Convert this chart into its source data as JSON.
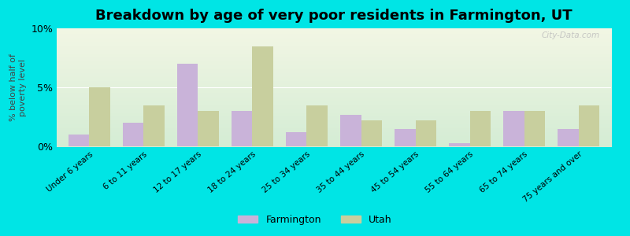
{
  "categories": [
    "Under 6 years",
    "6 to 11 years",
    "12 to 17 years",
    "18 to 24 years",
    "25 to 34 years",
    "35 to 44 years",
    "45 to 54 years",
    "55 to 64 years",
    "65 to 74 years",
    "75 years and over"
  ],
  "farmington": [
    1.0,
    2.0,
    7.0,
    3.0,
    1.2,
    2.7,
    1.5,
    0.3,
    3.0,
    1.5
  ],
  "utah": [
    5.0,
    3.5,
    3.0,
    8.5,
    3.5,
    2.2,
    2.2,
    3.0,
    3.0,
    3.5
  ],
  "farmington_color": "#c9b3d9",
  "utah_color": "#c8cf9e",
  "background_color": "#00e5e5",
  "plot_bg_top": "#f2f6e4",
  "plot_bg_bottom": "#d4ecd4",
  "title": "Breakdown by age of very poor residents in Farmington, UT",
  "ylabel": "% below half of\npoverty level",
  "ylim": [
    0,
    10
  ],
  "yticks": [
    0,
    5,
    10
  ],
  "ytick_labels": [
    "0%",
    "5%",
    "10%"
  ],
  "title_fontsize": 13,
  "label_fontsize": 9,
  "bar_width": 0.38,
  "legend_farmington": "Farmington",
  "legend_utah": "Utah",
  "watermark": "City-Data.com"
}
